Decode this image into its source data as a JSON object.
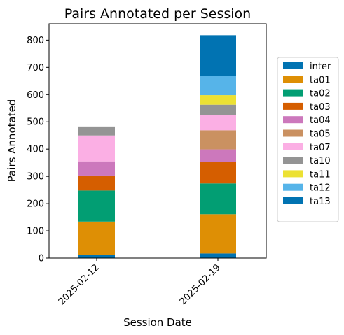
{
  "chart_data": {
    "type": "bar",
    "stacked": true,
    "title": "Pairs Annotated per Session",
    "xlabel": "Session Date",
    "ylabel": "Pairs Annotated",
    "categories": [
      "2025-02-12",
      "2025-02-19"
    ],
    "ylim": [
      0,
      860
    ],
    "yticks": [
      0,
      100,
      200,
      300,
      400,
      500,
      600,
      700,
      800
    ],
    "grid": false,
    "legend_position": "right, outside plot",
    "series": [
      {
        "name": "inter",
        "color": "#0173b2",
        "values": [
          12,
          17
        ]
      },
      {
        "name": "ta01",
        "color": "#de8f05",
        "values": [
          122,
          144
        ]
      },
      {
        "name": "ta02",
        "color": "#029e73",
        "values": [
          114,
          113
        ]
      },
      {
        "name": "ta03",
        "color": "#d55e00",
        "values": [
          55,
          80
        ]
      },
      {
        "name": "ta04",
        "color": "#cc78bc",
        "values": [
          52,
          45
        ]
      },
      {
        "name": "ta05",
        "color": "#ca9161",
        "values": [
          0,
          70
        ]
      },
      {
        "name": "ta07",
        "color": "#fbafe4",
        "values": [
          95,
          56
        ]
      },
      {
        "name": "ta10",
        "color": "#949494",
        "values": [
          33,
          38
        ]
      },
      {
        "name": "ta11",
        "color": "#ece133",
        "values": [
          0,
          35
        ]
      },
      {
        "name": "ta12",
        "color": "#56b4e9",
        "values": [
          0,
          70
        ]
      },
      {
        "name": "ta13",
        "color": "#0173b2",
        "values": [
          0,
          150
        ]
      }
    ]
  }
}
